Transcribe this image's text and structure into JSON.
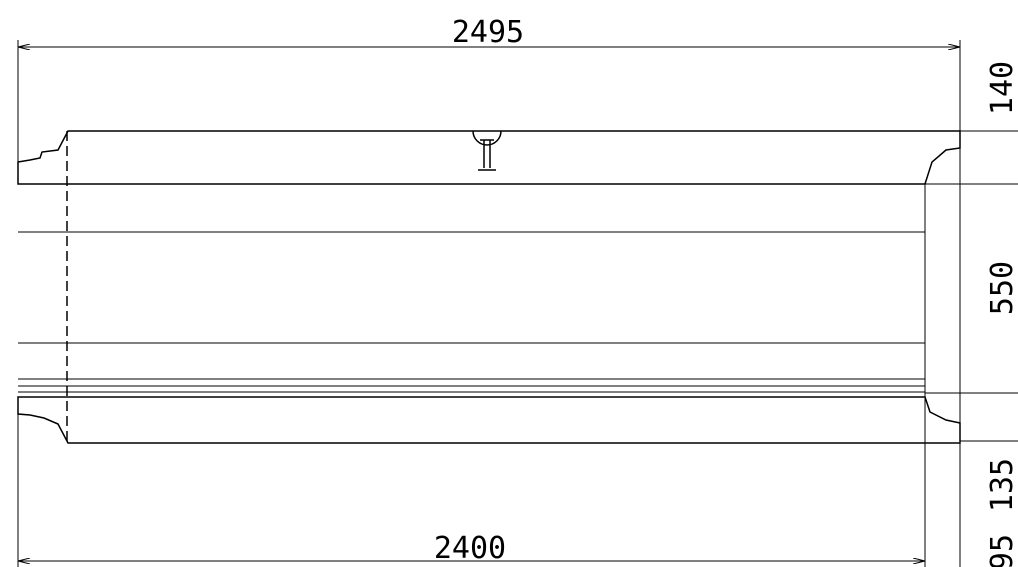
{
  "dimensions": {
    "overall_length": "2495",
    "inner_length": "2400",
    "top_wall": "140",
    "inner_height": "550",
    "bottom_wall": "135",
    "spigot": "95"
  }
}
